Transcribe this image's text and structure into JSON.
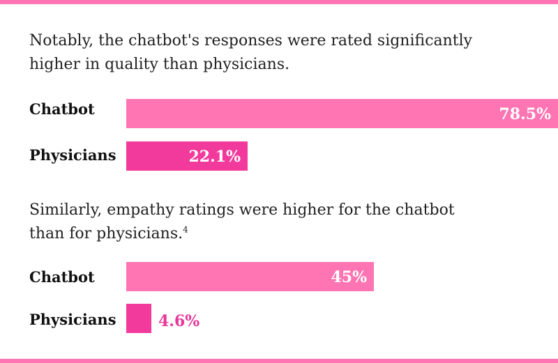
{
  "sections": [
    {
      "intro_lines": [
        "Notably, the chatbot's responses were rated significantly",
        "higher in quality than physicians."
      ],
      "footnote": ""
    },
    {
      "intro_lines": [
        "Similarly, empathy ratings were higher for the chatbot",
        "than for physicians."
      ],
      "footnote": "4"
    }
  ],
  "colors": {
    "chatbot": "#ff75b3",
    "physicians": "#f23a9d",
    "rule": "#ff75b3",
    "outside_label": "#e8369b"
  },
  "chart_data": [
    {
      "type": "bar",
      "orientation": "horizontal",
      "categories": [
        "Chatbot",
        "Physicians"
      ],
      "values": [
        78.5,
        22.1
      ],
      "value_labels": [
        "78.5%",
        "22.1%"
      ],
      "xlim": [
        0,
        78.5
      ]
    },
    {
      "type": "bar",
      "orientation": "horizontal",
      "categories": [
        "Chatbot",
        "Physicians"
      ],
      "values": [
        45,
        4.6
      ],
      "value_labels": [
        "45%",
        "4.6%"
      ],
      "xlim": [
        0,
        78.5
      ]
    }
  ]
}
